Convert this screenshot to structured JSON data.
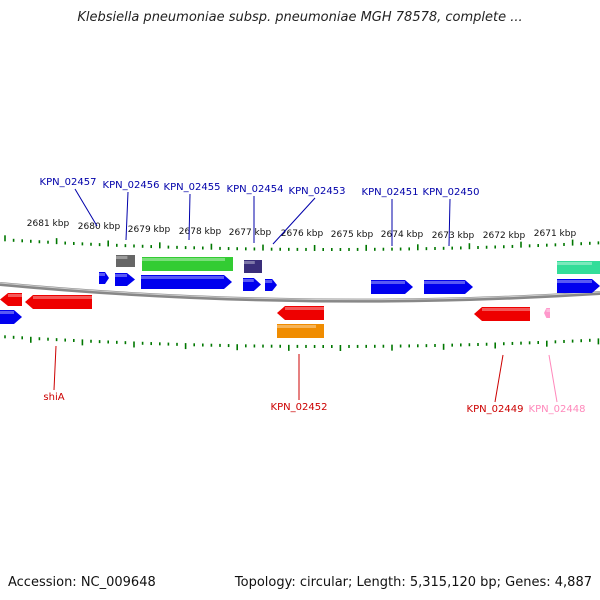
{
  "title": "Klebsiella pneumoniae subsp. pneumoniae MGH 78578, complete ...",
  "footer": {
    "accession": "Accession: NC_009648",
    "topology": "Topology: circular; Length: 5,315,120 bp; Genes: 4,887"
  },
  "colors": {
    "blue": "#0000ee",
    "red": "#ee0000",
    "green": "#33cc33",
    "grey": "#666666",
    "purple": "#3a2e7a",
    "orange": "#f08c00",
    "pink": "#ff99cc",
    "mint": "#33dd99",
    "tick": "#007700",
    "backbone": "#888888",
    "label_blue": "#0000aa",
    "label_red": "#cc0000",
    "label_pink": "#ff88bb"
  },
  "scale_labels": [
    "2681 kbp",
    "2680 kbp",
    "2679 kbp",
    "2678 kbp",
    "2677 kbp",
    "2676 kbp",
    "2675 kbp",
    "2674 kbp",
    "2673 kbp",
    "2672 kbp",
    "2671 kbp"
  ],
  "gene_labels": [
    {
      "text": "KPN_02457",
      "color": "label_blue"
    },
    {
      "text": "KPN_02456",
      "color": "label_blue"
    },
    {
      "text": "KPN_02455",
      "color": "label_blue"
    },
    {
      "text": "KPN_02454",
      "color": "label_blue"
    },
    {
      "text": "KPN_02453",
      "color": "label_blue"
    },
    {
      "text": "KPN_02451",
      "color": "label_blue"
    },
    {
      "text": "KPN_02450",
      "color": "label_blue"
    },
    {
      "text": "shiA",
      "color": "label_red"
    },
    {
      "text": "KPN_02452",
      "color": "label_red"
    },
    {
      "text": "KPN_02449",
      "color": "label_red"
    },
    {
      "text": "KPN_02448",
      "color": "label_pink"
    }
  ]
}
